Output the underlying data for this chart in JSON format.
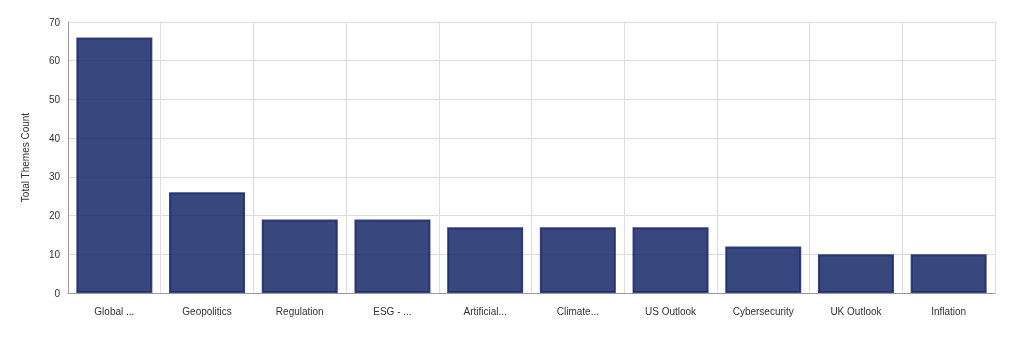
{
  "chart_data": {
    "type": "bar",
    "ylabel": "Total Themes Count",
    "categories": [
      "Global ...",
      "Geopolitics",
      "Regulation",
      "ESG - ...",
      "Artificial...",
      "Climate...",
      "US Outlook",
      "Cybersecurity",
      "UK Outlook",
      "Inflation"
    ],
    "values": [
      66,
      26,
      19,
      19,
      17,
      17,
      17,
      12,
      10,
      10
    ],
    "color": "#1c2c6c",
    "ylim": [
      0,
      70
    ],
    "yticks": [
      0,
      10,
      20,
      30,
      40,
      50,
      60,
      70
    ],
    "grid": true
  }
}
